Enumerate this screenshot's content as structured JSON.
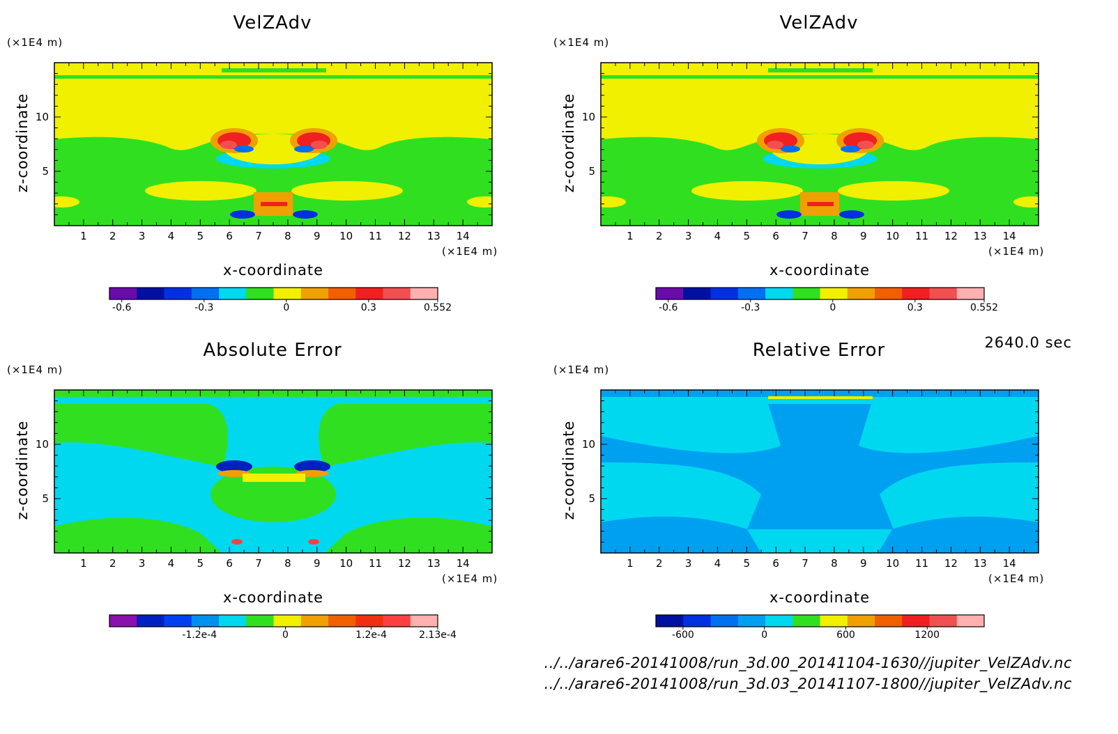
{
  "time_label": "2640.0 sec",
  "file_paths": [
    "../../arare6-20141008/run_3d.00_20141104-1630//jupiter_VelZAdv.nc",
    "../../arare6-20141008/run_3d.03_20141107-1800//jupiter_VelZAdv.nc"
  ],
  "chart_data": [
    {
      "type": "heatmap",
      "title": "VelZAdv",
      "xlabel": "x-coordinate",
      "ylabel": "z-coordinate",
      "x_unit": "(×1E4 m)",
      "y_unit": "(×1E4 m)",
      "xlim": [
        0,
        15
      ],
      "ylim": [
        0,
        15
      ],
      "x_ticks": [
        "1",
        "2",
        "3",
        "4",
        "5",
        "6",
        "7",
        "8",
        "9",
        "10",
        "11",
        "12",
        "13",
        "14"
      ],
      "y_ticks": [
        "5",
        "10"
      ],
      "colorbar": {
        "colors": [
          "#6a0ca8",
          "#0010a0",
          "#0030e0",
          "#0070f0",
          "#00d8f0",
          "#30e020",
          "#f0f000",
          "#f0a000",
          "#f06000",
          "#f02020",
          "#f05050",
          "#ffb0b0"
        ],
        "tick_labels": [
          "-0.6",
          "-0.3",
          "0",
          "0.3",
          "0.552"
        ],
        "tick_values": [
          -0.6,
          -0.3,
          0,
          0.3,
          0.552
        ],
        "range": [
          -0.645,
          0.552
        ]
      }
    },
    {
      "type": "heatmap",
      "title": "VelZAdv",
      "xlabel": "x-coordinate",
      "ylabel": "z-coordinate",
      "x_unit": "(×1E4 m)",
      "y_unit": "(×1E4 m)",
      "xlim": [
        0,
        15
      ],
      "ylim": [
        0,
        15
      ],
      "x_ticks": [
        "1",
        "2",
        "3",
        "4",
        "5",
        "6",
        "7",
        "8",
        "9",
        "10",
        "11",
        "12",
        "13",
        "14"
      ],
      "y_ticks": [
        "5",
        "10"
      ],
      "colorbar": {
        "colors": [
          "#6a0ca8",
          "#0010a0",
          "#0030e0",
          "#0070f0",
          "#00d8f0",
          "#30e020",
          "#f0f000",
          "#f0a000",
          "#f06000",
          "#f02020",
          "#f05050",
          "#ffb0b0"
        ],
        "tick_labels": [
          "-0.6",
          "-0.3",
          "0",
          "0.3",
          "0.552"
        ],
        "tick_values": [
          -0.6,
          -0.3,
          0,
          0.3,
          0.552
        ],
        "range": [
          -0.645,
          0.552
        ]
      }
    },
    {
      "type": "heatmap",
      "title": "Absolute Error",
      "xlabel": "x-coordinate",
      "ylabel": "z-coordinate",
      "x_unit": "(×1E4 m)",
      "y_unit": "(×1E4 m)",
      "xlim": [
        0,
        15
      ],
      "ylim": [
        0,
        15
      ],
      "x_ticks": [
        "1",
        "2",
        "3",
        "4",
        "5",
        "6",
        "7",
        "8",
        "9",
        "10",
        "11",
        "12",
        "13",
        "14"
      ],
      "y_ticks": [
        "5",
        "10"
      ],
      "colorbar": {
        "colors": [
          "#8a10b0",
          "#0020c0",
          "#0040f0",
          "#0090f0",
          "#00d8f0",
          "#30e020",
          "#f0f000",
          "#f0a000",
          "#f06000",
          "#f03010",
          "#ff4040",
          "#ffb0b0"
        ],
        "tick_labels": [
          "-1.2e-4",
          "0",
          "1.2e-4",
          "2.13e-4"
        ],
        "tick_values": [
          -0.00012,
          0,
          0.00012,
          0.000213
        ],
        "range": [
          -0.000246,
          0.000213
        ]
      }
    },
    {
      "type": "heatmap",
      "title": "Relative Error",
      "xlabel": "x-coordinate",
      "ylabel": "z-coordinate",
      "x_unit": "(×1E4 m)",
      "y_unit": "(×1E4 m)",
      "xlim": [
        0,
        15
      ],
      "ylim": [
        0,
        15
      ],
      "x_ticks": [
        "1",
        "2",
        "3",
        "4",
        "5",
        "6",
        "7",
        "8",
        "9",
        "10",
        "11",
        "12",
        "13",
        "14"
      ],
      "y_ticks": [
        "5",
        "10"
      ],
      "colorbar": {
        "colors": [
          "#0010a0",
          "#0030e0",
          "#0070f0",
          "#00a0f0",
          "#00d8f0",
          "#30e020",
          "#f0f000",
          "#f0a000",
          "#f06000",
          "#f02020",
          "#f05050",
          "#ffb0b0"
        ],
        "tick_labels": [
          "-600",
          "0",
          "600",
          "1200"
        ],
        "tick_values": [
          -600,
          0,
          600,
          1200
        ],
        "range": [
          -800,
          1620
        ]
      }
    }
  ]
}
